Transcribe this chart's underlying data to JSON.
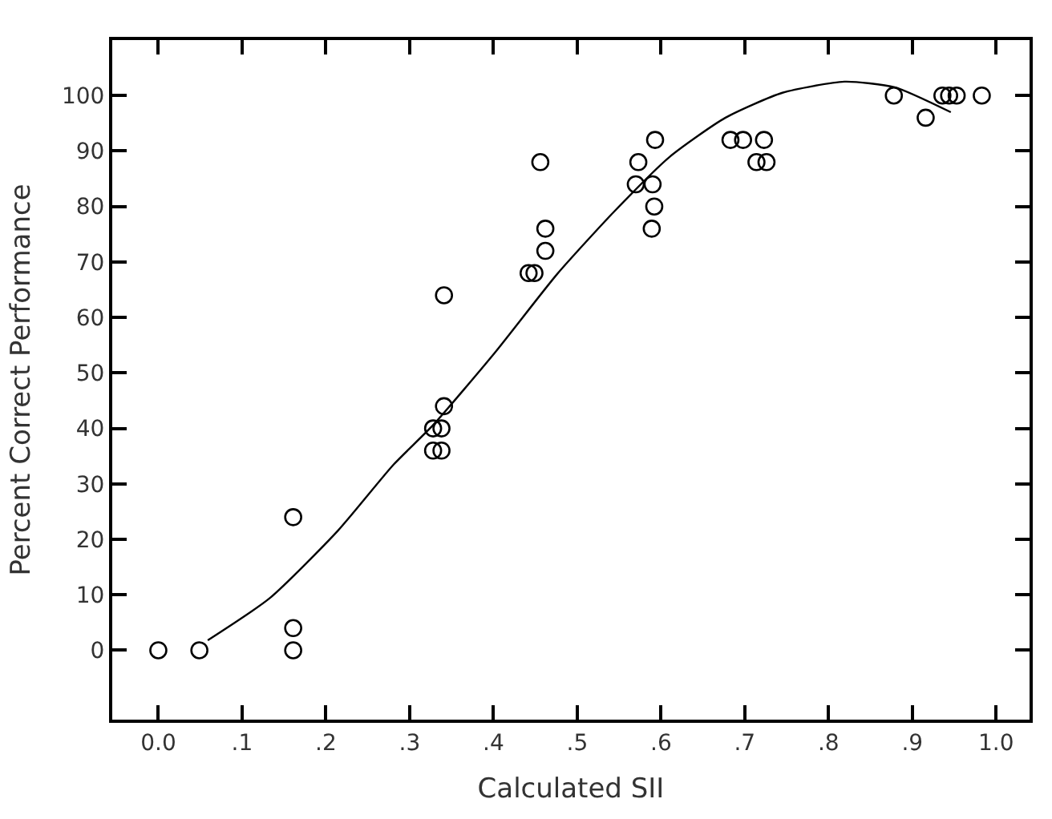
{
  "chart_data": {
    "type": "scatter",
    "xlabel": "Calculated SII",
    "ylabel": "Percent Correct Performance",
    "xlim": [
      -0.055,
      1.04
    ],
    "ylim": [
      -12.5,
      110
    ],
    "xticks": [
      {
        "value": 0,
        "label": "0.0"
      },
      {
        "value": 0.1,
        "label": ".1"
      },
      {
        "value": 0.2,
        "label": ".2"
      },
      {
        "value": 0.3,
        "label": ".3"
      },
      {
        "value": 0.4,
        "label": ".4"
      },
      {
        "value": 0.5,
        "label": ".5"
      },
      {
        "value": 0.6,
        "label": ".6"
      },
      {
        "value": 0.7,
        "label": ".7"
      },
      {
        "value": 0.8,
        "label": ".8"
      },
      {
        "value": 0.9,
        "label": ".9"
      },
      {
        "value": 1.0,
        "label": "1.0"
      }
    ],
    "yticks": [
      0,
      10,
      20,
      30,
      40,
      50,
      60,
      70,
      80,
      90,
      100
    ],
    "series": [
      {
        "marker": "circle",
        "color": "#000000",
        "x": [
          0,
          0.049,
          0.161,
          0.161,
          0.161,
          0.341,
          0.341,
          0.328,
          0.338,
          0.328,
          0.338,
          0.442,
          0.449,
          0.462,
          0.462,
          0.456,
          0.573,
          0.57,
          0.59,
          0.593,
          0.592,
          0.589,
          0.683,
          0.698,
          0.723,
          0.714,
          0.726,
          0.878,
          0.916,
          0.936,
          0.944,
          0.953,
          0.983
        ],
        "values": [
          0,
          0,
          24,
          4,
          0,
          64,
          44,
          40,
          40,
          36,
          36,
          68,
          68,
          72,
          76,
          88,
          88,
          84,
          84,
          92,
          80,
          76,
          92,
          92,
          92,
          88,
          88,
          100,
          96,
          100,
          100,
          100,
          100
        ]
      },
      {
        "type": "line",
        "marker": "none",
        "line_style": "solid",
        "color": "#000000",
        "x": [
          0.059,
          0.133,
          0.214,
          0.281,
          0.328,
          0.402,
          0.476,
          0.543,
          0.61,
          0.677,
          0.745,
          0.819,
          0.879,
          0.946
        ],
        "values": [
          1.8,
          9.4,
          21.5,
          33.5,
          40.6,
          53.7,
          67.8,
          78.9,
          88.9,
          96,
          100.5,
          102.5,
          101.5,
          97
        ]
      }
    ]
  }
}
